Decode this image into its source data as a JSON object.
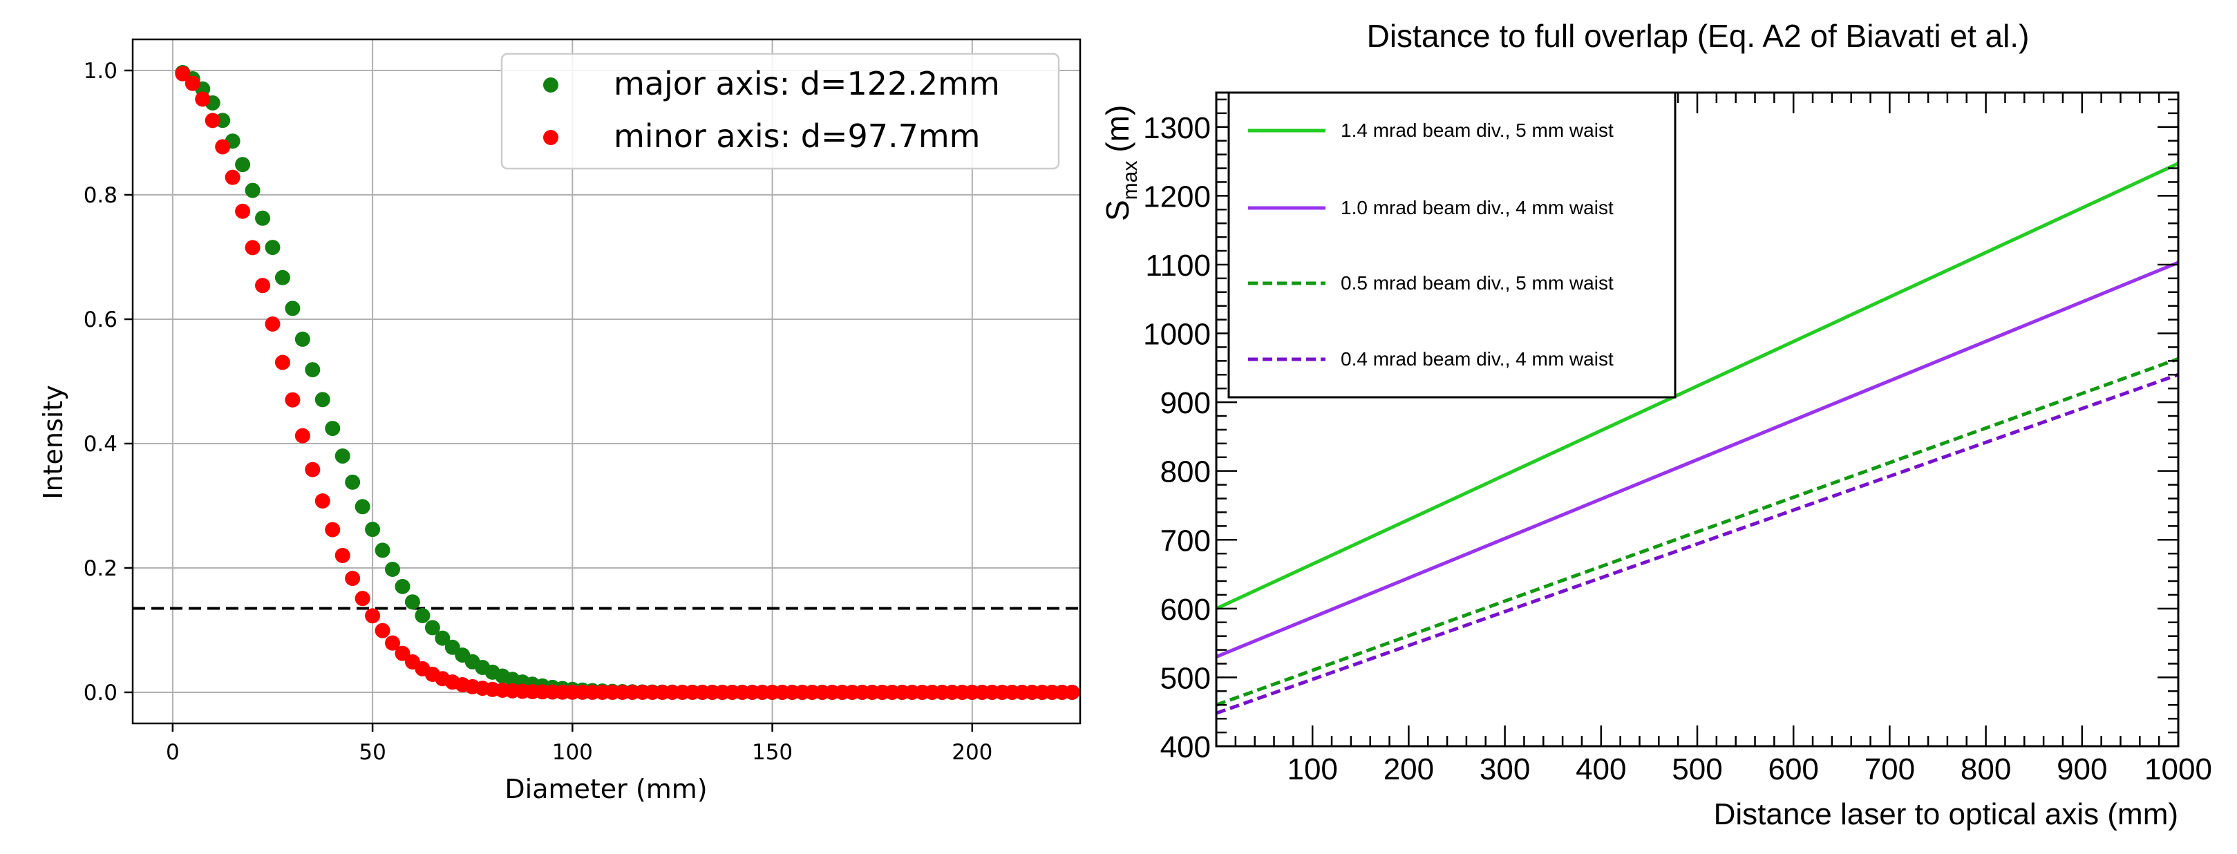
{
  "chart_data": [
    {
      "type": "scatter",
      "xlabel": "Diameter (mm)",
      "ylabel": "Intensity",
      "xlim": [
        -10,
        227
      ],
      "ylim": [
        -0.05,
        1.05
      ],
      "xticks": [
        0,
        50,
        100,
        150,
        200
      ],
      "yticks": [
        0.0,
        0.2,
        0.4,
        0.6,
        0.8,
        1.0
      ],
      "xtick_labels": [
        "0",
        "50",
        "100",
        "150",
        "200"
      ],
      "ytick_labels": [
        "0.0",
        "0.2",
        "0.4",
        "0.6",
        "0.8",
        "1.0"
      ],
      "grid": true,
      "legend_position": "top-right",
      "threshold_line": {
        "y": 0.135,
        "style": "dashed",
        "color": "#000000"
      },
      "x_start": 2.5,
      "x_step": 2.5,
      "n_points": 90,
      "series": [
        {
          "name": "major axis: d=122.2mm",
          "color": "#118011",
          "d": 122.2
        },
        {
          "name": "minor axis: d=97.7mm",
          "color": "#ff0000",
          "d": 97.7
        }
      ]
    },
    {
      "type": "line",
      "title": "Distance to full overlap (Eq. A2 of Biavati et al.)",
      "xlabel": "Distance laser to optical axis (mm)",
      "ylabel_main": "S",
      "ylabel_sub": "max",
      "ylabel_unit": "(m)",
      "xlim": [
        0,
        1000
      ],
      "ylim": [
        400,
        1350
      ],
      "xticks": [
        100,
        200,
        300,
        400,
        500,
        600,
        700,
        800,
        900,
        1000
      ],
      "yticks": [
        400,
        500,
        600,
        700,
        800,
        900,
        1000,
        1100,
        1200,
        1300
      ],
      "xtick_labels": [
        "100",
        "200",
        "300",
        "400",
        "500",
        "600",
        "700",
        "800",
        "900",
        "1000"
      ],
      "ytick_labels": [
        "400",
        "500",
        "600",
        "700",
        "800",
        "900",
        "1000",
        "1100",
        "1200",
        "1300"
      ],
      "grid": false,
      "legend_position": "top-left",
      "series": [
        {
          "name": "1.4 mrad beam div., 5 mm waist",
          "color": "#22cc22",
          "style": "solid",
          "x": [
            0,
            1000
          ],
          "y": [
            600,
            1247
          ]
        },
        {
          "name": "1.0 mrad beam div., 4 mm waist",
          "color": "#9933ee",
          "style": "solid",
          "x": [
            0,
            1000
          ],
          "y": [
            530,
            1103
          ]
        },
        {
          "name": "0.5 mrad beam div., 5 mm waist",
          "color": "#119911",
          "style": "dashed",
          "x": [
            0,
            1000
          ],
          "y": [
            460,
            963
          ]
        },
        {
          "name": "0.4 mrad beam div., 4 mm waist",
          "color": "#7711cc",
          "style": "dashed",
          "x": [
            0,
            1000
          ],
          "y": [
            448,
            940
          ]
        }
      ]
    }
  ]
}
